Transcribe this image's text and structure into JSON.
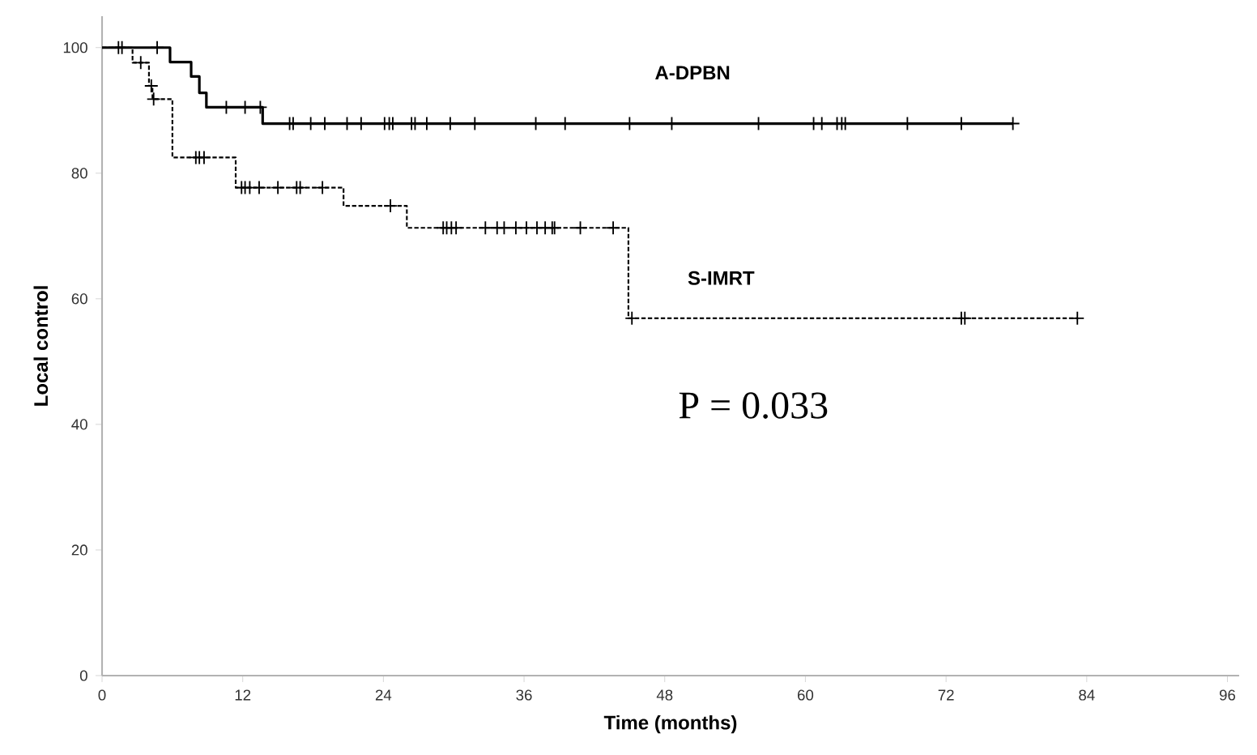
{
  "chart_data": {
    "type": "step",
    "xlabel": "Time (months)",
    "ylabel": "Local control",
    "xlim": [
      0,
      97
    ],
    "xticks": [
      0,
      12,
      24,
      36,
      48,
      60,
      72,
      84,
      96
    ],
    "ylim": [
      0,
      105
    ],
    "yticks": [
      0,
      20,
      40,
      60,
      80,
      100
    ],
    "grid": false,
    "legend": false,
    "annotations": [
      "P = 0.033"
    ],
    "series": [
      {
        "name": "A-DPBN",
        "color": "#000000",
        "line_style": "solid",
        "x": [
          0,
          5.8,
          7.6,
          8.3,
          8.9,
          13.7,
          77.7
        ],
        "values": [
          100,
          97.7,
          95.4,
          92.8,
          90.5,
          87.9,
          87.9
        ]
      },
      {
        "name": "S-IMRT",
        "color": "#000000",
        "line_style": "dashed",
        "x": [
          0,
          2.6,
          4.0,
          4.3,
          6.0,
          11.4,
          20.6,
          26.0,
          44.9,
          83.2
        ],
        "values": [
          100,
          97.6,
          93.9,
          91.8,
          82.5,
          77.7,
          74.8,
          71.3,
          56.9,
          56.9
        ]
      },
      {
        "type": "scatter",
        "marker": "cross",
        "color": "#000000",
        "x": [
          1.4,
          1.7,
          4.7,
          10.6,
          12.2,
          13.5,
          16.0,
          16.3,
          17.8,
          19.0,
          20.9,
          22.1,
          24.1,
          24.5,
          24.8,
          26.4,
          26.7,
          27.7,
          29.7,
          31.8,
          37.0,
          39.5,
          45.0,
          48.6,
          56.0,
          60.7,
          61.4,
          62.7,
          63.1,
          63.4,
          68.7,
          73.3,
          77.7
        ],
        "values": [
          100,
          100,
          100,
          90.5,
          90.5,
          90.5,
          87.9,
          87.9,
          87.9,
          87.9,
          87.9,
          87.9,
          87.9,
          87.9,
          87.9,
          87.9,
          87.9,
          87.9,
          87.9,
          87.9,
          87.9,
          87.9,
          87.9,
          87.9,
          87.9,
          87.9,
          87.9,
          87.9,
          87.9,
          87.9,
          87.9,
          87.9,
          87.9
        ]
      },
      {
        "type": "scatter",
        "marker": "cross",
        "color": "#000000",
        "x": [
          3.3,
          4.2,
          4.4,
          8.0,
          8.3,
          8.7,
          11.9,
          12.2,
          12.6,
          13.4,
          15.0,
          16.6,
          16.9,
          18.8,
          24.6,
          29.1,
          29.4,
          29.8,
          30.2,
          32.7,
          33.7,
          34.3,
          35.3,
          36.2,
          37.1,
          37.8,
          38.4,
          38.6,
          40.8,
          43.6,
          45.2,
          73.3,
          73.6,
          83.2
        ],
        "values": [
          97.6,
          93.9,
          91.8,
          82.5,
          82.5,
          82.5,
          77.7,
          77.7,
          77.7,
          77.7,
          77.7,
          77.7,
          77.7,
          77.7,
          74.8,
          71.3,
          71.3,
          71.3,
          71.3,
          71.3,
          71.3,
          71.3,
          71.3,
          71.3,
          71.3,
          71.3,
          71.3,
          71.3,
          71.3,
          71.3,
          56.9,
          56.9,
          56.9,
          56.9
        ]
      }
    ]
  }
}
